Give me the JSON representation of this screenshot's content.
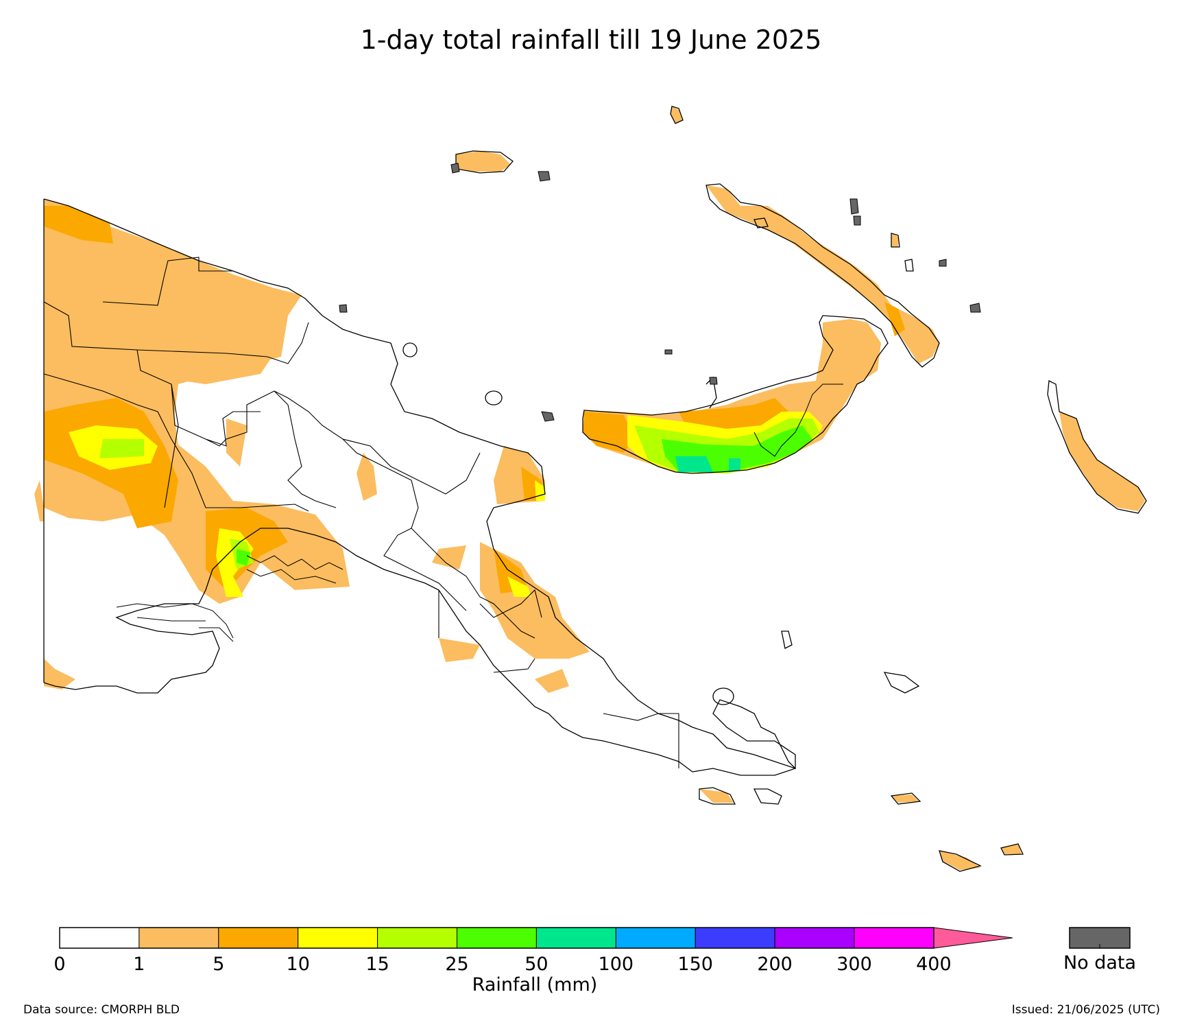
{
  "title": "1-day total rainfall till 19 June 2025",
  "colorbar": {
    "label": "Rainfall (mm)",
    "ticks": [
      "0",
      "1",
      "5",
      "10",
      "15",
      "25",
      "50",
      "100",
      "150",
      "200",
      "300",
      "400"
    ],
    "colors": [
      "#ffffff",
      "#fbbd5f",
      "#fba800",
      "#ffff00",
      "#b4ff00",
      "#4cff00",
      "#00e68c",
      "#00aaff",
      "#3c3cff",
      "#aa00ff",
      "#ff00ff"
    ],
    "extend_color": "#ff5a9a",
    "nodata_label": "No data",
    "nodata_color": "#666666"
  },
  "footer": {
    "source": "Data source: CMORPH BLD",
    "issued": "Issued: 21/06/2025 (UTC)"
  }
}
